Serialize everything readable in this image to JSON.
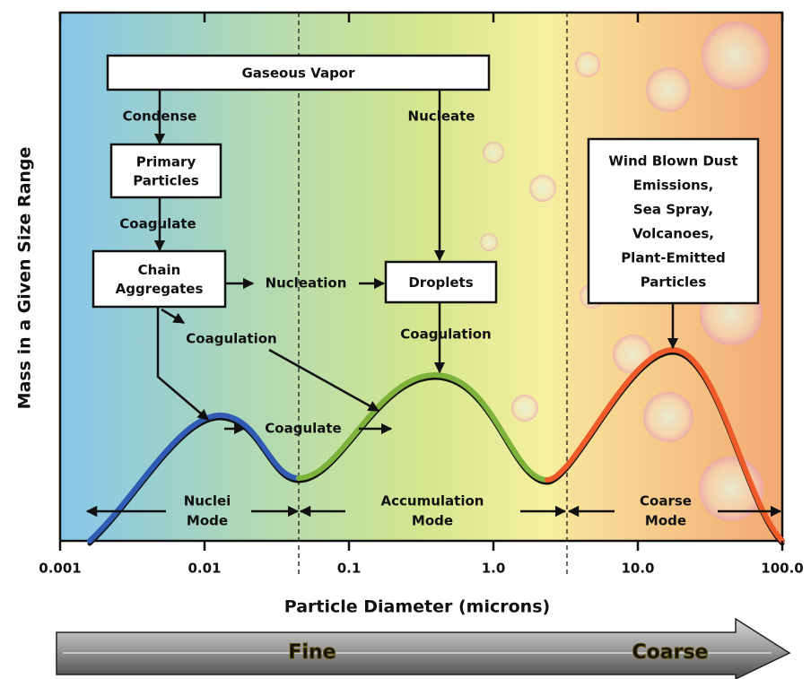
{
  "axis": {
    "y_label": "Mass in a Given Size Range",
    "x_label": "Particle Diameter (microns)",
    "ticks": [
      "0.001",
      "0.01",
      "0.1",
      "1.0",
      "10.0",
      "100.0"
    ]
  },
  "boxes": [
    {
      "lines": [
        "Gaseous Vapor"
      ]
    },
    {
      "lines": [
        "Primary",
        "Particles"
      ]
    },
    {
      "lines": [
        "Chain",
        "Aggregates"
      ]
    },
    {
      "lines": [
        "Droplets"
      ]
    },
    {
      "lines": [
        "Wind Blown Dust",
        "Emissions,",
        "Sea Spray,",
        "Volcanoes,",
        "Plant-Emitted",
        "Particles"
      ]
    }
  ],
  "processes": [
    "Condense",
    "Nucleate",
    "Coagulate",
    "Nucleation",
    "Coagulation",
    "Coagulation",
    "Coagulate"
  ],
  "modes": [
    {
      "lines": [
        "Nuclei",
        "Mode"
      ]
    },
    {
      "lines": [
        "Accumulation",
        "Mode"
      ]
    },
    {
      "lines": [
        "Coarse",
        "Mode"
      ]
    }
  ],
  "size_bands": [
    "Fine",
    "Coarse"
  ]
}
